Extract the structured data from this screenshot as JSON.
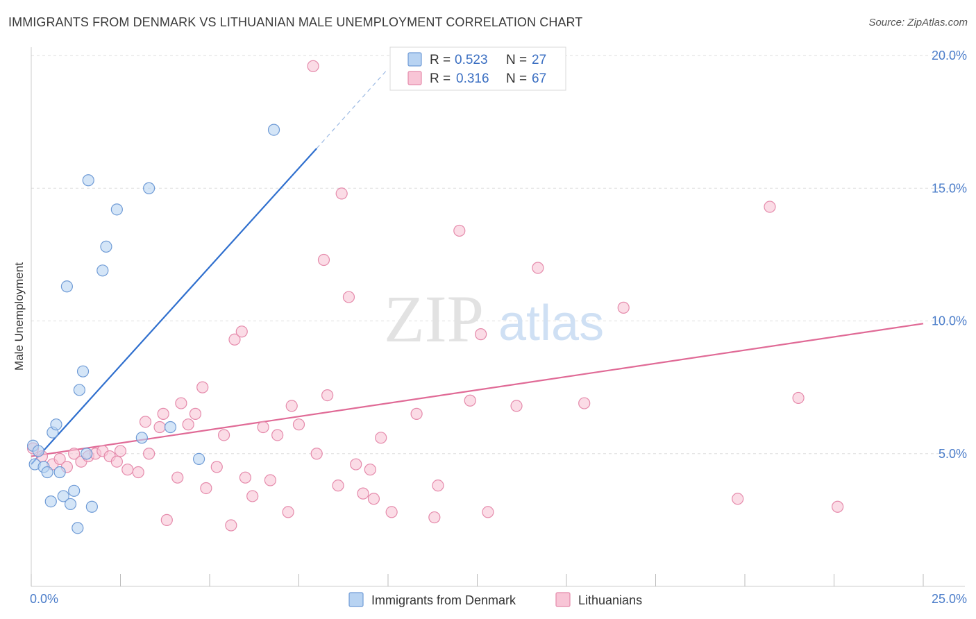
{
  "title": "IMMIGRANTS FROM DENMARK VS LITHUANIAN MALE UNEMPLOYMENT CORRELATION CHART",
  "source": "Source: ZipAtlas.com",
  "watermark": {
    "zip": "ZIP",
    "atlas": "atlas"
  },
  "colors": {
    "blue_fill": "#b8d3f2",
    "blue_stroke": "#6f9bd6",
    "blue_line": "#2f6fce",
    "pink_fill": "#f8c5d6",
    "pink_stroke": "#e58aab",
    "pink_line": "#e06a96",
    "grid": "#dddddd",
    "axis_label": "#4a7cc9"
  },
  "legend": {
    "rows": [
      {
        "r_label": "R =",
        "r_value": "0.523",
        "n_label": "N =",
        "n_value": "27",
        "series": "blue"
      },
      {
        "r_label": "R =",
        "r_value": "0.316",
        "n_label": "N =",
        "n_value": "67",
        "series": "pink"
      }
    ]
  },
  "chart_data": {
    "type": "scatter",
    "title": "IMMIGRANTS FROM DENMARK VS LITHUANIAN MALE UNEMPLOYMENT CORRELATION CHART",
    "xlabel": "",
    "ylabel": "Male Unemployment",
    "xlim": [
      0,
      25
    ],
    "ylim": [
      0,
      20
    ],
    "x_tick_labels": [
      "0.0%",
      "25.0%"
    ],
    "y_ticks": [
      5,
      10,
      15,
      20
    ],
    "y_tick_labels": [
      "5.0%",
      "10.0%",
      "15.0%",
      "20.0%"
    ],
    "grid": true,
    "legend_position": "top-center",
    "series": [
      {
        "name": "Immigrants from Denmark",
        "color": "blue",
        "points": [
          [
            0.05,
            5.3
          ],
          [
            0.1,
            4.6
          ],
          [
            0.2,
            5.1
          ],
          [
            0.35,
            4.5
          ],
          [
            0.45,
            4.3
          ],
          [
            0.55,
            3.2
          ],
          [
            0.6,
            5.8
          ],
          [
            0.7,
            6.1
          ],
          [
            0.8,
            4.3
          ],
          [
            0.9,
            3.4
          ],
          [
            1.0,
            11.3
          ],
          [
            1.1,
            3.1
          ],
          [
            1.2,
            3.6
          ],
          [
            1.3,
            2.2
          ],
          [
            1.35,
            7.4
          ],
          [
            1.45,
            8.1
          ],
          [
            1.55,
            5.0
          ],
          [
            1.6,
            15.3
          ],
          [
            1.7,
            3.0
          ],
          [
            2.0,
            11.9
          ],
          [
            2.1,
            12.8
          ],
          [
            2.4,
            14.2
          ],
          [
            3.1,
            5.6
          ],
          [
            3.3,
            15.0
          ],
          [
            3.9,
            6.0
          ],
          [
            4.7,
            4.8
          ],
          [
            6.8,
            17.2
          ]
        ],
        "trend": {
          "x0": 0.0,
          "y0": 4.6,
          "x1": 8.0,
          "y1": 16.5,
          "extend_x1": 10.0,
          "extend_y1": 19.5
        }
      },
      {
        "name": "Lithuanians",
        "color": "pink",
        "points": [
          [
            0.05,
            5.2
          ],
          [
            0.3,
            4.9
          ],
          [
            0.6,
            4.6
          ],
          [
            0.8,
            4.8
          ],
          [
            1.0,
            4.5
          ],
          [
            1.2,
            5.0
          ],
          [
            1.4,
            4.7
          ],
          [
            1.6,
            4.9
          ],
          [
            1.8,
            5.0
          ],
          [
            2.0,
            5.1
          ],
          [
            2.2,
            4.9
          ],
          [
            2.4,
            4.7
          ],
          [
            2.5,
            5.1
          ],
          [
            2.7,
            4.4
          ],
          [
            3.0,
            4.3
          ],
          [
            3.2,
            6.2
          ],
          [
            3.3,
            5.0
          ],
          [
            3.6,
            6.0
          ],
          [
            3.7,
            6.5
          ],
          [
            3.8,
            2.5
          ],
          [
            4.1,
            4.1
          ],
          [
            4.2,
            6.9
          ],
          [
            4.4,
            6.1
          ],
          [
            4.6,
            6.5
          ],
          [
            4.8,
            7.5
          ],
          [
            4.9,
            3.7
          ],
          [
            5.2,
            4.5
          ],
          [
            5.4,
            5.7
          ],
          [
            5.6,
            2.3
          ],
          [
            5.7,
            9.3
          ],
          [
            5.9,
            9.6
          ],
          [
            6.0,
            4.1
          ],
          [
            6.2,
            3.4
          ],
          [
            6.5,
            6.0
          ],
          [
            6.7,
            4.0
          ],
          [
            6.9,
            5.7
          ],
          [
            7.2,
            2.8
          ],
          [
            7.3,
            6.8
          ],
          [
            7.5,
            6.1
          ],
          [
            7.9,
            19.6
          ],
          [
            8.0,
            5.0
          ],
          [
            8.2,
            12.3
          ],
          [
            8.3,
            7.2
          ],
          [
            8.6,
            3.8
          ],
          [
            8.7,
            14.8
          ],
          [
            8.9,
            10.9
          ],
          [
            9.1,
            4.6
          ],
          [
            9.3,
            3.5
          ],
          [
            9.5,
            4.4
          ],
          [
            9.6,
            3.3
          ],
          [
            9.8,
            5.6
          ],
          [
            10.1,
            2.8
          ],
          [
            10.8,
            6.5
          ],
          [
            11.3,
            2.6
          ],
          [
            11.4,
            3.8
          ],
          [
            12.0,
            13.4
          ],
          [
            12.3,
            7.0
          ],
          [
            12.6,
            9.5
          ],
          [
            12.8,
            2.8
          ],
          [
            13.6,
            6.8
          ],
          [
            14.2,
            12.0
          ],
          [
            15.5,
            6.9
          ],
          [
            16.6,
            10.5
          ],
          [
            19.8,
            3.3
          ],
          [
            20.7,
            14.3
          ],
          [
            21.5,
            7.1
          ],
          [
            22.6,
            3.0
          ]
        ],
        "trend": {
          "x0": 0.0,
          "y0": 4.9,
          "x1": 25.0,
          "y1": 9.9
        }
      }
    ]
  }
}
